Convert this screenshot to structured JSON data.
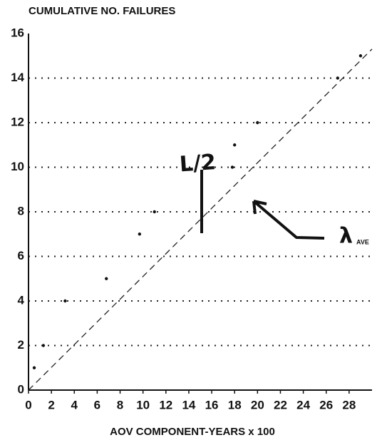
{
  "chart_data": {
    "type": "scatter",
    "title": "CUMULATIVE NO. FAILURES",
    "xlabel": "AOV COMPONENT-YEARS x 100",
    "x": [
      0.5,
      1.3,
      3.2,
      6.8,
      9.7,
      11,
      17.8,
      18,
      20,
      27,
      29
    ],
    "values": [
      1,
      2,
      4,
      5,
      7,
      8,
      10,
      11,
      12,
      14,
      15
    ],
    "color": "#111111",
    "line": {
      "x": [
        0,
        30
      ],
      "values": [
        0,
        15.3
      ],
      "style": "dashed"
    },
    "xlim": [
      0,
      30
    ],
    "ylim": [
      0,
      16
    ],
    "xticks": [
      0,
      2,
      4,
      6,
      8,
      10,
      12,
      14,
      16,
      18,
      20,
      22,
      24,
      26,
      28
    ],
    "yticks": [
      0,
      2,
      4,
      6,
      8,
      10,
      12,
      14,
      16
    ],
    "grid": true,
    "annotations": [
      "L/2",
      "λ",
      "AVE"
    ]
  }
}
